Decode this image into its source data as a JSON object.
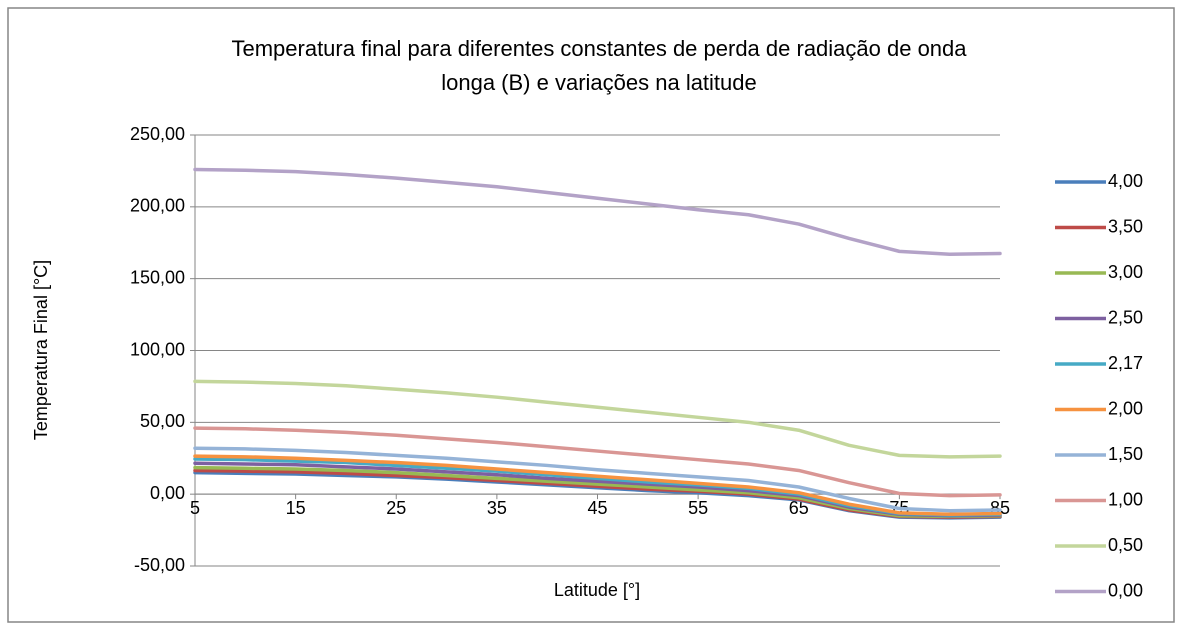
{
  "chart_data": {
    "type": "line",
    "title": [
      "Temperatura final para diferentes constantes de perda de radiação de onda",
      "longa (B) e variações na latitude"
    ],
    "x_label": "Latitude [°]",
    "y_label": "Temperatura Final [°C]",
    "x": [
      5,
      10,
      15,
      20,
      25,
      30,
      35,
      40,
      45,
      50,
      55,
      60,
      65,
      70,
      75,
      80,
      85
    ],
    "xlim": [
      5,
      85
    ],
    "xticks": [
      5,
      15,
      25,
      35,
      45,
      55,
      65,
      75,
      85
    ],
    "ylim": [
      -50,
      250
    ],
    "yticks": [
      {
        "value": -50,
        "label": "-50,00"
      },
      {
        "value": 0,
        "label": "0,00"
      },
      {
        "value": 50,
        "label": "50,00"
      },
      {
        "value": 100,
        "label": "100,00"
      },
      {
        "value": 150,
        "label": "150,00"
      },
      {
        "value": 200,
        "label": "200,00"
      },
      {
        "value": 250,
        "label": "250,00"
      }
    ],
    "grid": true,
    "legend": "right",
    "series": [
      {
        "name": "4,00",
        "color": "#4a7ebb",
        "values": [
          15,
          14.5,
          14,
          13,
          12,
          10.5,
          8.5,
          6.5,
          4.5,
          2.5,
          1,
          -1,
          -4,
          -11.5,
          -16,
          -16.5,
          -16
        ]
      },
      {
        "name": "3,50",
        "color": "#be4b48",
        "values": [
          16.5,
          16,
          15.5,
          14.5,
          13,
          11.5,
          9.5,
          7.5,
          5.5,
          3.5,
          2,
          0,
          -3.5,
          -11,
          -15.5,
          -16,
          -15.5
        ]
      },
      {
        "name": "3,00",
        "color": "#98b954",
        "values": [
          18.5,
          18,
          17.5,
          16.5,
          15,
          13,
          11,
          9,
          7,
          5,
          3,
          1,
          -2.5,
          -10,
          -15,
          -15.5,
          -15
        ]
      },
      {
        "name": "2,50",
        "color": "#7d60a0",
        "values": [
          21.5,
          21,
          20.5,
          19,
          17.5,
          15.5,
          13.5,
          11,
          9,
          7,
          5,
          2.5,
          -1,
          -9,
          -14,
          -15,
          -14.5
        ]
      },
      {
        "name": "2,17",
        "color": "#46aac5",
        "values": [
          24.5,
          24,
          23,
          22,
          20,
          18,
          16,
          13.5,
          11,
          8.5,
          6.5,
          4,
          0,
          -8,
          -13.5,
          -14.5,
          -14
        ]
      },
      {
        "name": "2,00",
        "color": "#f69240",
        "values": [
          26.5,
          26,
          25,
          23.5,
          22,
          20,
          17.5,
          15,
          12.5,
          10,
          7.5,
          5,
          1,
          -7,
          -13,
          -14,
          -13.5
        ]
      },
      {
        "name": "1,50",
        "color": "#95b3d7",
        "values": [
          32,
          31.5,
          30.5,
          29,
          27,
          25,
          22.5,
          20,
          17,
          14.5,
          12,
          9.5,
          5,
          -3,
          -10,
          -11.5,
          -11
        ]
      },
      {
        "name": "1,00",
        "color": "#d99694",
        "values": [
          46,
          45.5,
          44.5,
          43,
          41,
          38.5,
          36,
          33,
          30,
          27,
          24,
          21,
          16.5,
          8,
          0.5,
          -1,
          -0.5
        ]
      },
      {
        "name": "0,50",
        "color": "#c3d69b",
        "values": [
          78.5,
          78,
          77,
          75.5,
          73,
          70.5,
          67.5,
          64,
          60.5,
          57,
          53.5,
          50,
          44.5,
          34,
          27,
          26,
          26.5
        ]
      },
      {
        "name": "0,00",
        "color": "#b3a2c7",
        "values": [
          226,
          225.5,
          224.5,
          222.5,
          220,
          217,
          214,
          210,
          206,
          202,
          198,
          194.5,
          188,
          178,
          169,
          167,
          167.5
        ]
      }
    ]
  }
}
